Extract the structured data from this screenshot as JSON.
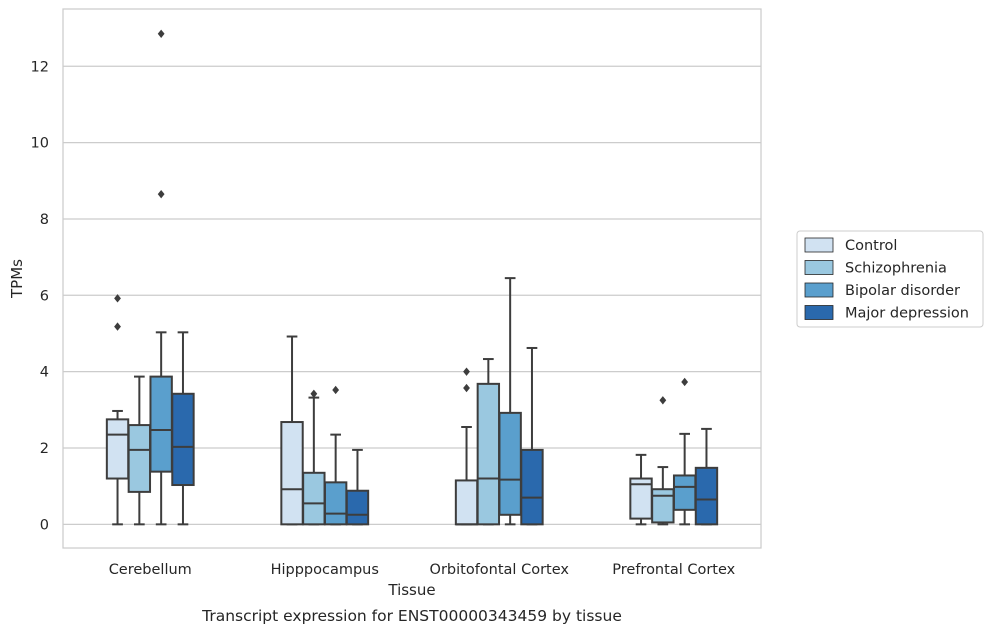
{
  "chart_data": {
    "type": "boxplot",
    "title": "Transcript expression for ENST00000343459 by tissue",
    "xlabel": "Tissue",
    "ylabel": "TPMs",
    "ylim": [
      -0.62,
      13.5
    ],
    "yticks": [
      0,
      2,
      4,
      6,
      8,
      10,
      12
    ],
    "grid": "horizontal",
    "legend_position": "right",
    "categories": [
      "Cerebellum",
      "Hipppocampus",
      "Orbitofontal Cortex",
      "Prefrontal Cortex"
    ],
    "series": [
      {
        "name": "Control",
        "color": "#d1e2f2",
        "boxes": [
          {
            "whislo": 0,
            "q1": 1.2,
            "med": 2.35,
            "q3": 2.75,
            "whishi": 2.97,
            "fliers": [
              5.18,
              5.92
            ]
          },
          {
            "whislo": 0,
            "q1": 0,
            "med": 0.92,
            "q3": 2.68,
            "whishi": 4.92,
            "fliers": []
          },
          {
            "whislo": 0,
            "q1": 0,
            "med": 0,
            "q3": 1.15,
            "whishi": 2.55,
            "fliers": [
              3.57,
              4.0
            ]
          },
          {
            "whislo": 0,
            "q1": 0.15,
            "med": 1.05,
            "q3": 1.2,
            "whishi": 1.82,
            "fliers": []
          }
        ]
      },
      {
        "name": "Schizophrenia",
        "color": "#9ac8e0",
        "boxes": [
          {
            "whislo": 0,
            "q1": 0.85,
            "med": 1.95,
            "q3": 2.6,
            "whishi": 3.87,
            "fliers": []
          },
          {
            "whislo": 0,
            "q1": 0,
            "med": 0.55,
            "q3": 1.35,
            "whishi": 3.32,
            "fliers": [
              3.42
            ]
          },
          {
            "whislo": 0,
            "q1": 0,
            "med": 1.2,
            "q3": 3.68,
            "whishi": 4.33,
            "fliers": []
          },
          {
            "whislo": 0,
            "q1": 0.05,
            "med": 0.75,
            "q3": 0.92,
            "whishi": 1.5,
            "fliers": [
              3.25
            ]
          }
        ]
      },
      {
        "name": "Bipolar disorder",
        "color": "#5a9fcd",
        "boxes": [
          {
            "whislo": 0,
            "q1": 1.38,
            "med": 2.47,
            "q3": 3.87,
            "whishi": 5.03,
            "fliers": [
              8.65,
              12.85
            ]
          },
          {
            "whislo": 0,
            "q1": 0,
            "med": 0.28,
            "q3": 1.1,
            "whishi": 2.35,
            "fliers": [
              3.52
            ]
          },
          {
            "whislo": 0,
            "q1": 0.25,
            "med": 1.17,
            "q3": 2.92,
            "whishi": 6.45,
            "fliers": []
          },
          {
            "whislo": 0,
            "q1": 0.38,
            "med": 0.98,
            "q3": 1.28,
            "whishi": 2.37,
            "fliers": [
              3.73
            ]
          }
        ]
      },
      {
        "name": "Major depression",
        "color": "#2a69ad",
        "boxes": [
          {
            "whislo": 0,
            "q1": 1.03,
            "med": 2.03,
            "q3": 3.42,
            "whishi": 5.03,
            "fliers": []
          },
          {
            "whislo": 0,
            "q1": 0,
            "med": 0.25,
            "q3": 0.88,
            "whishi": 1.95,
            "fliers": []
          },
          {
            "whislo": 0,
            "q1": 0,
            "med": 0.7,
            "q3": 1.95,
            "whishi": 4.62,
            "fliers": []
          },
          {
            "whislo": 0,
            "q1": 0,
            "med": 0.65,
            "q3": 1.48,
            "whishi": 2.5,
            "fliers": []
          }
        ]
      }
    ]
  }
}
